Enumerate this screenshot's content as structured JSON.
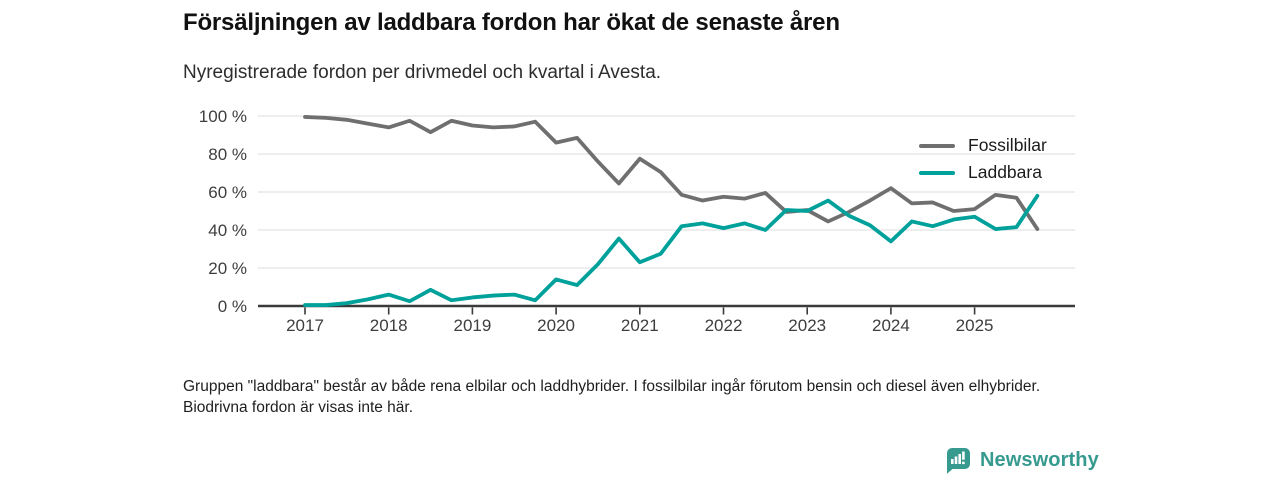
{
  "chart_data": {
    "type": "line",
    "title": "Försäljningen av laddbara fordon har ökat de senaste åren",
    "subtitle": "Nyregistrerade fordon per drivmedel och kvartal i Avesta.",
    "xlabel": "",
    "ylabel": "",
    "ylim": [
      0,
      100
    ],
    "y_ticks": [
      0,
      20,
      40,
      60,
      80,
      100
    ],
    "y_tick_suffix": " %",
    "grid": true,
    "legend_position": "top-right",
    "x_tick_labels": [
      "2017",
      "2018",
      "2019",
      "2020",
      "2021",
      "2022",
      "2023",
      "2024",
      "2025"
    ],
    "categories": [
      "2017 Q1",
      "2017 Q2",
      "2017 Q3",
      "2017 Q4",
      "2018 Q1",
      "2018 Q2",
      "2018 Q3",
      "2018 Q4",
      "2019 Q1",
      "2019 Q2",
      "2019 Q3",
      "2019 Q4",
      "2020 Q1",
      "2020 Q2",
      "2020 Q3",
      "2020 Q4",
      "2021 Q1",
      "2021 Q2",
      "2021 Q3",
      "2021 Q4",
      "2022 Q1",
      "2022 Q2",
      "2022 Q3",
      "2022 Q4",
      "2023 Q1",
      "2023 Q2",
      "2023 Q3",
      "2023 Q4",
      "2024 Q1",
      "2024 Q2",
      "2024 Q3",
      "2024 Q4",
      "2025 Q1",
      "2025 Q2",
      "2025 Q3",
      "2025 Q4"
    ],
    "series": [
      {
        "name": "Fossilbilar",
        "color": "#6F6F6F",
        "values": [
          99.5,
          99,
          98,
          96,
          94,
          97.5,
          91.5,
          97.5,
          95,
          94,
          94.5,
          97,
          86,
          88.5,
          76,
          64.5,
          77.5,
          70.5,
          58.5,
          55.5,
          57.5,
          56.5,
          59.5,
          49.5,
          50.5,
          44.5,
          49.5,
          55.5,
          62,
          54,
          54.5,
          50,
          51,
          58.5,
          57,
          40.5
        ]
      },
      {
        "name": "Laddbara",
        "color": "#00A09B",
        "values": [
          0.5,
          0.5,
          1.5,
          3.5,
          6,
          2.5,
          8.5,
          3,
          4.5,
          5.5,
          6,
          3,
          14,
          11,
          22,
          35.5,
          23,
          27.5,
          42,
          43.5,
          41,
          43.5,
          40,
          50.5,
          50,
          55.5,
          47.5,
          42.5,
          34,
          44.5,
          42,
          45.5,
          47,
          40.5,
          41.5,
          58
        ]
      }
    ]
  },
  "footer": {
    "note": "Gruppen \"laddbara\" består av både rena elbilar och laddhybrider. I fossilbilar ingår förutom bensin och diesel även elhybrider. Biodrivna fordon är visas inte här."
  },
  "branding": {
    "logo_text": "Newsworthy",
    "color": "#379A8E"
  }
}
